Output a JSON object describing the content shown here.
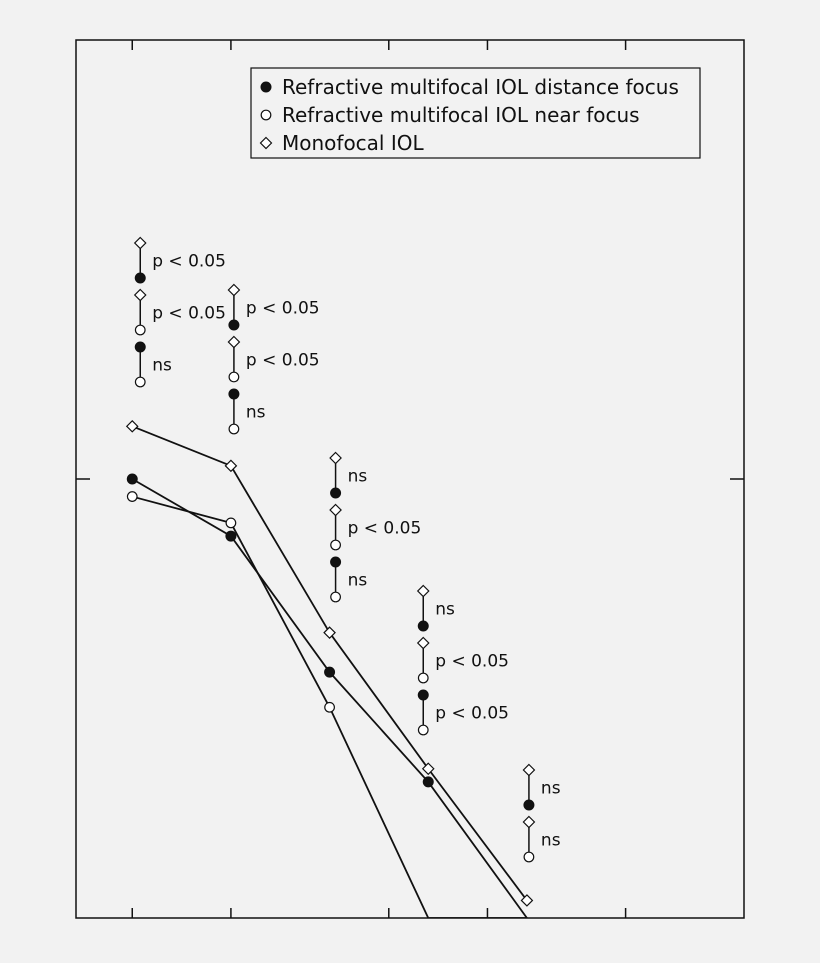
{
  "chart_data": {
    "type": "line",
    "x": [
      1,
      2,
      3,
      4,
      5
    ],
    "series": [
      {
        "name": "Refractive multifocal IOL distance focus",
        "marker": "filled-circle",
        "values": [
          0.0,
          -0.13,
          -0.44,
          -0.69,
          -1.0
        ],
        "visible_points": [
          true,
          true,
          true,
          true,
          false
        ]
      },
      {
        "name": "Refractive multifocal IOL near focus",
        "marker": "open-circle",
        "values": [
          -0.04,
          -0.1,
          -0.52,
          -1.0,
          -1.0
        ],
        "visible_points": [
          true,
          true,
          true,
          false,
          false
        ]
      },
      {
        "name": "Monofocal IOL",
        "marker": "open-diamond",
        "values": [
          0.12,
          0.03,
          -0.35,
          -0.66,
          -0.96
        ],
        "visible_points": [
          true,
          true,
          true,
          true,
          true
        ]
      }
    ],
    "significance": [
      {
        "x": 1,
        "tests": [
          {
            "pair": "monofocal-vs-distance",
            "label": "p < 0.05"
          },
          {
            "pair": "monofocal-vs-near",
            "label": "p < 0.05"
          },
          {
            "pair": "distance-vs-near",
            "label": "ns"
          }
        ]
      },
      {
        "x": 2,
        "tests": [
          {
            "pair": "monofocal-vs-distance",
            "label": "p < 0.05"
          },
          {
            "pair": "monofocal-vs-near",
            "label": "p < 0.05"
          },
          {
            "pair": "distance-vs-near",
            "label": "ns"
          }
        ]
      },
      {
        "x": 3,
        "tests": [
          {
            "pair": "monofocal-vs-distance",
            "label": "ns"
          },
          {
            "pair": "monofocal-vs-near",
            "label": "p < 0.05"
          },
          {
            "pair": "distance-vs-near",
            "label": "ns"
          }
        ]
      },
      {
        "x": 4,
        "tests": [
          {
            "pair": "monofocal-vs-distance",
            "label": "ns"
          },
          {
            "pair": "monofocal-vs-near",
            "label": "p < 0.05"
          },
          {
            "pair": "distance-vs-near",
            "label": "p < 0.05"
          }
        ]
      },
      {
        "x": 5,
        "tests": [
          {
            "pair": "monofocal-vs-distance",
            "label": "ns"
          },
          {
            "pair": "monofocal-vs-near",
            "label": "ns"
          }
        ]
      }
    ],
    "xlim": [
      0.43,
      7.2
    ],
    "ylim": [
      -1.0,
      1.0
    ],
    "x_ticks": [
      1,
      2,
      3.6,
      4.6,
      6
    ],
    "y_ticks": [
      0
    ],
    "legend_position": "top-right",
    "grid": false,
    "colors": {
      "background": "#f2f2f2",
      "ink": "#111111",
      "marker_fill_open": "#ffffff"
    }
  }
}
